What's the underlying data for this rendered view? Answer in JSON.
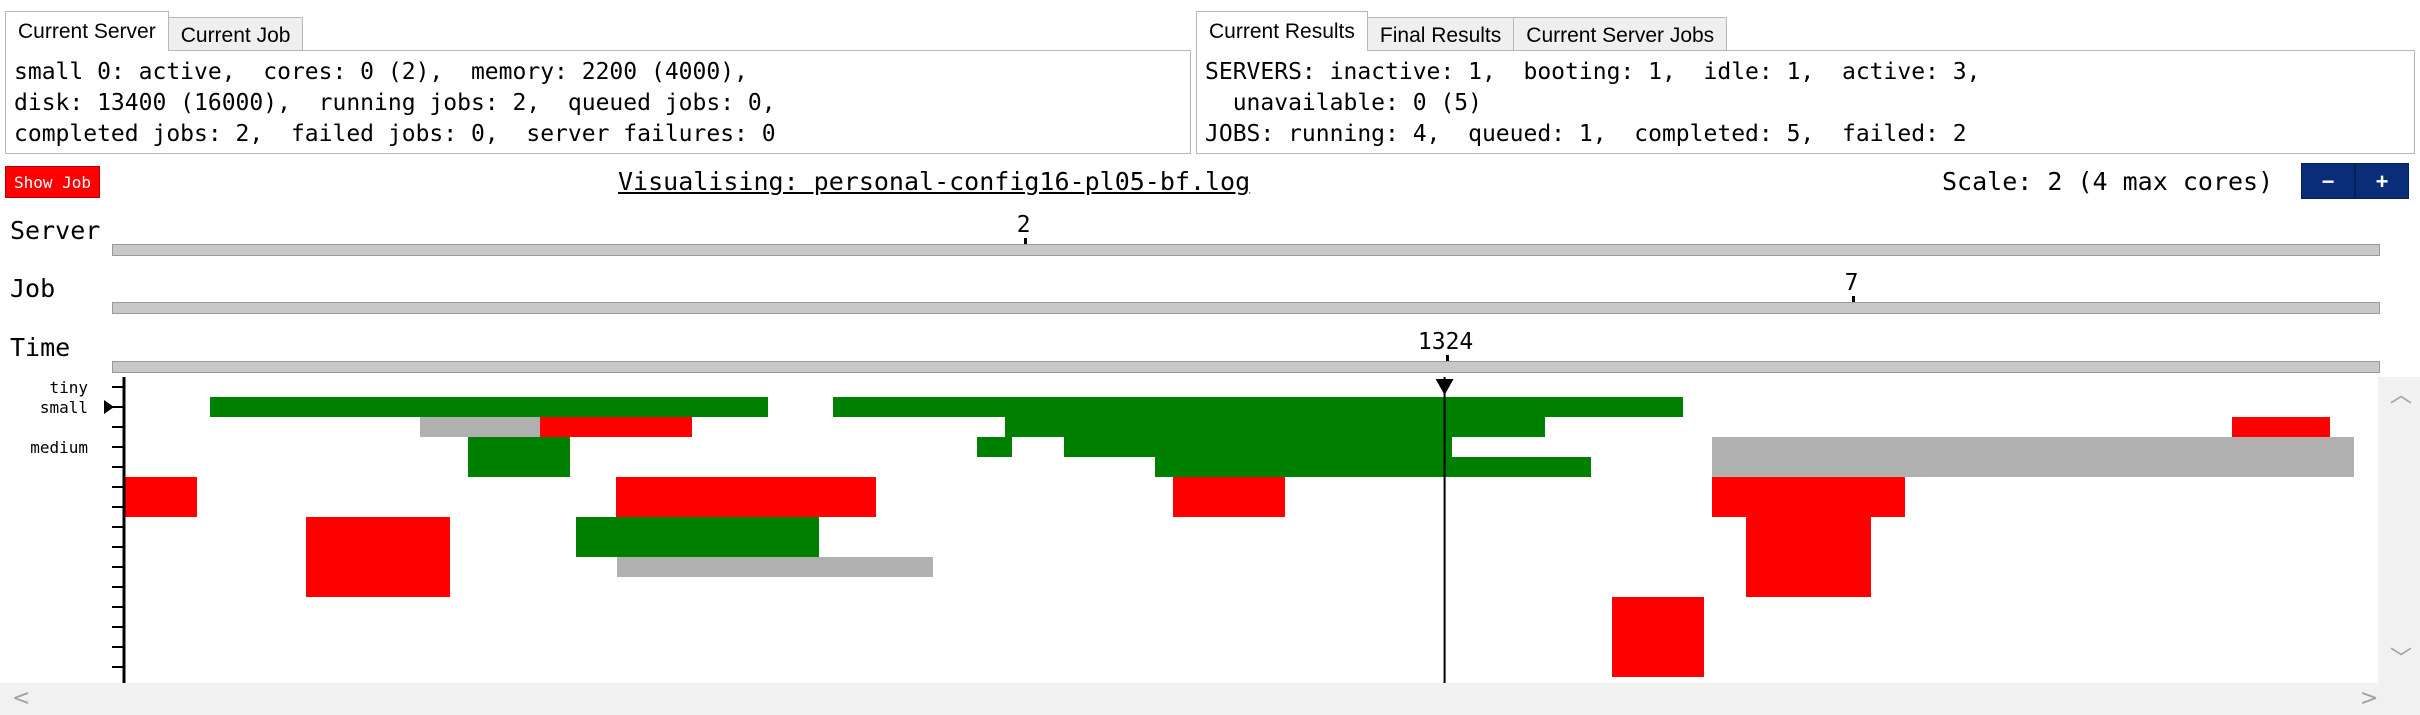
{
  "left_tabs": [
    {
      "label": "Current Server",
      "active": true
    },
    {
      "label": "Current Job",
      "active": false
    }
  ],
  "right_tabs": [
    {
      "label": "Current Results",
      "active": true
    },
    {
      "label": "Final Results",
      "active": false
    },
    {
      "label": "Current Server Jobs",
      "active": false
    }
  ],
  "server_info": {
    "line1": "small 0: active,  cores: 0 (2),  memory: 2200 (4000),",
    "line2": "disk: 13400 (16000),  running jobs: 2,  queued jobs: 0,",
    "line3": "completed jobs: 2,  failed jobs: 0,  server failures: 0"
  },
  "results_info": {
    "line1": "SERVERS: inactive: 1,  booting: 1,  idle: 1,  active: 3,",
    "line2": "  unavailable: 0 (5)",
    "line3": "JOBS: running: 4,  queued: 1,  completed: 5,  failed: 2"
  },
  "controls": {
    "show_job_label": "Show Job",
    "vis_title": "Visualising: personal-config16-pl05-bf.log",
    "scale_label": "Scale: 2 (4 max cores)",
    "zoom_out_label": "−",
    "zoom_in_label": "+"
  },
  "sliders": {
    "server": {
      "label": "Server",
      "value": "2",
      "fraction": 0.402
    },
    "job": {
      "label": "Job",
      "value": "7",
      "fraction": 0.767
    },
    "time": {
      "label": "Time",
      "value": "1324",
      "fraction": 0.588
    }
  },
  "viz": {
    "server_labels": [
      {
        "text": "tiny",
        "row": 0
      },
      {
        "text": "small",
        "row": 1
      },
      {
        "text": "medium",
        "row": 3
      }
    ],
    "selected_server_row": 1,
    "colors": {
      "running": "#008000",
      "failed": "#ff0000",
      "queued": "#b0b0b0",
      "axis": "#000000"
    }
  }
}
